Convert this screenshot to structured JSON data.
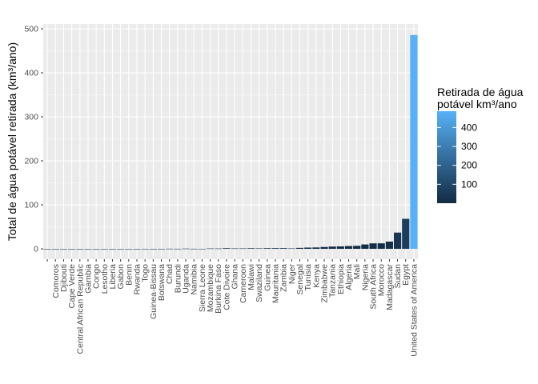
{
  "chart_data": {
    "type": "bar",
    "title": "",
    "xlabel": "",
    "ylabel": "Total de água potável retirada (km³/ano)",
    "ylim": [
      0,
      500
    ],
    "yticks": [
      0,
      100,
      200,
      300,
      400,
      500
    ],
    "grid": true,
    "legend": {
      "title_line1": "Retirada de água",
      "title_line2": "potável km³/ano",
      "placement": "right",
      "type": "colorbar",
      "ticks": [
        100,
        200,
        300,
        400
      ],
      "range": [
        0.0,
        486
      ],
      "color_low": "#132B43",
      "color_high": "#56B1F7"
    },
    "categories": [
      "",
      "Comoros",
      "Djibouti",
      "Cape Verde",
      "Central African Republic",
      "Gambia",
      "Congo",
      "Lesotho",
      "Liberia",
      "Gabon",
      "Benin",
      "Rwanda",
      "Togo",
      "Guinea-Bissau",
      "Botswana",
      "Chad",
      "Burundi",
      "Uganda",
      "Namibia",
      "Sierra Leone",
      "Mozambique",
      "Burkina Faso",
      "Cote Divoire",
      "Ghana",
      "Cameroon",
      "Malawi",
      "Swaziland",
      "Guinea",
      "Mauritania",
      "Zambia",
      "Niger",
      "Senegal",
      "Tunisia",
      "Kenya",
      "Zimbabwe",
      "Tanzania",
      "Ethiopia",
      "Algeria",
      "Mali",
      "Nigeria",
      "South Africa",
      "Morocco",
      "Madagascar",
      "Sudan",
      "Egypt",
      "United States of America"
    ],
    "values": [
      0,
      0.01,
      0.02,
      0.02,
      0.07,
      0.09,
      0.04,
      0.04,
      0.13,
      0.14,
      0.13,
      0.15,
      0.17,
      0.18,
      0.19,
      0.4,
      0.29,
      0.64,
      0.29,
      0.21,
      0.88,
      0.8,
      1.5,
      1.0,
      1.0,
      1.4,
      1.1,
      1.5,
      1.6,
      1.6,
      1.0,
      2.2,
      2.9,
      3.2,
      4.2,
      5.2,
      5.6,
      6.4,
      6.9,
      10.0,
      12.5,
      12.6,
      16.5,
      37.0,
      68.3,
      486
    ]
  }
}
